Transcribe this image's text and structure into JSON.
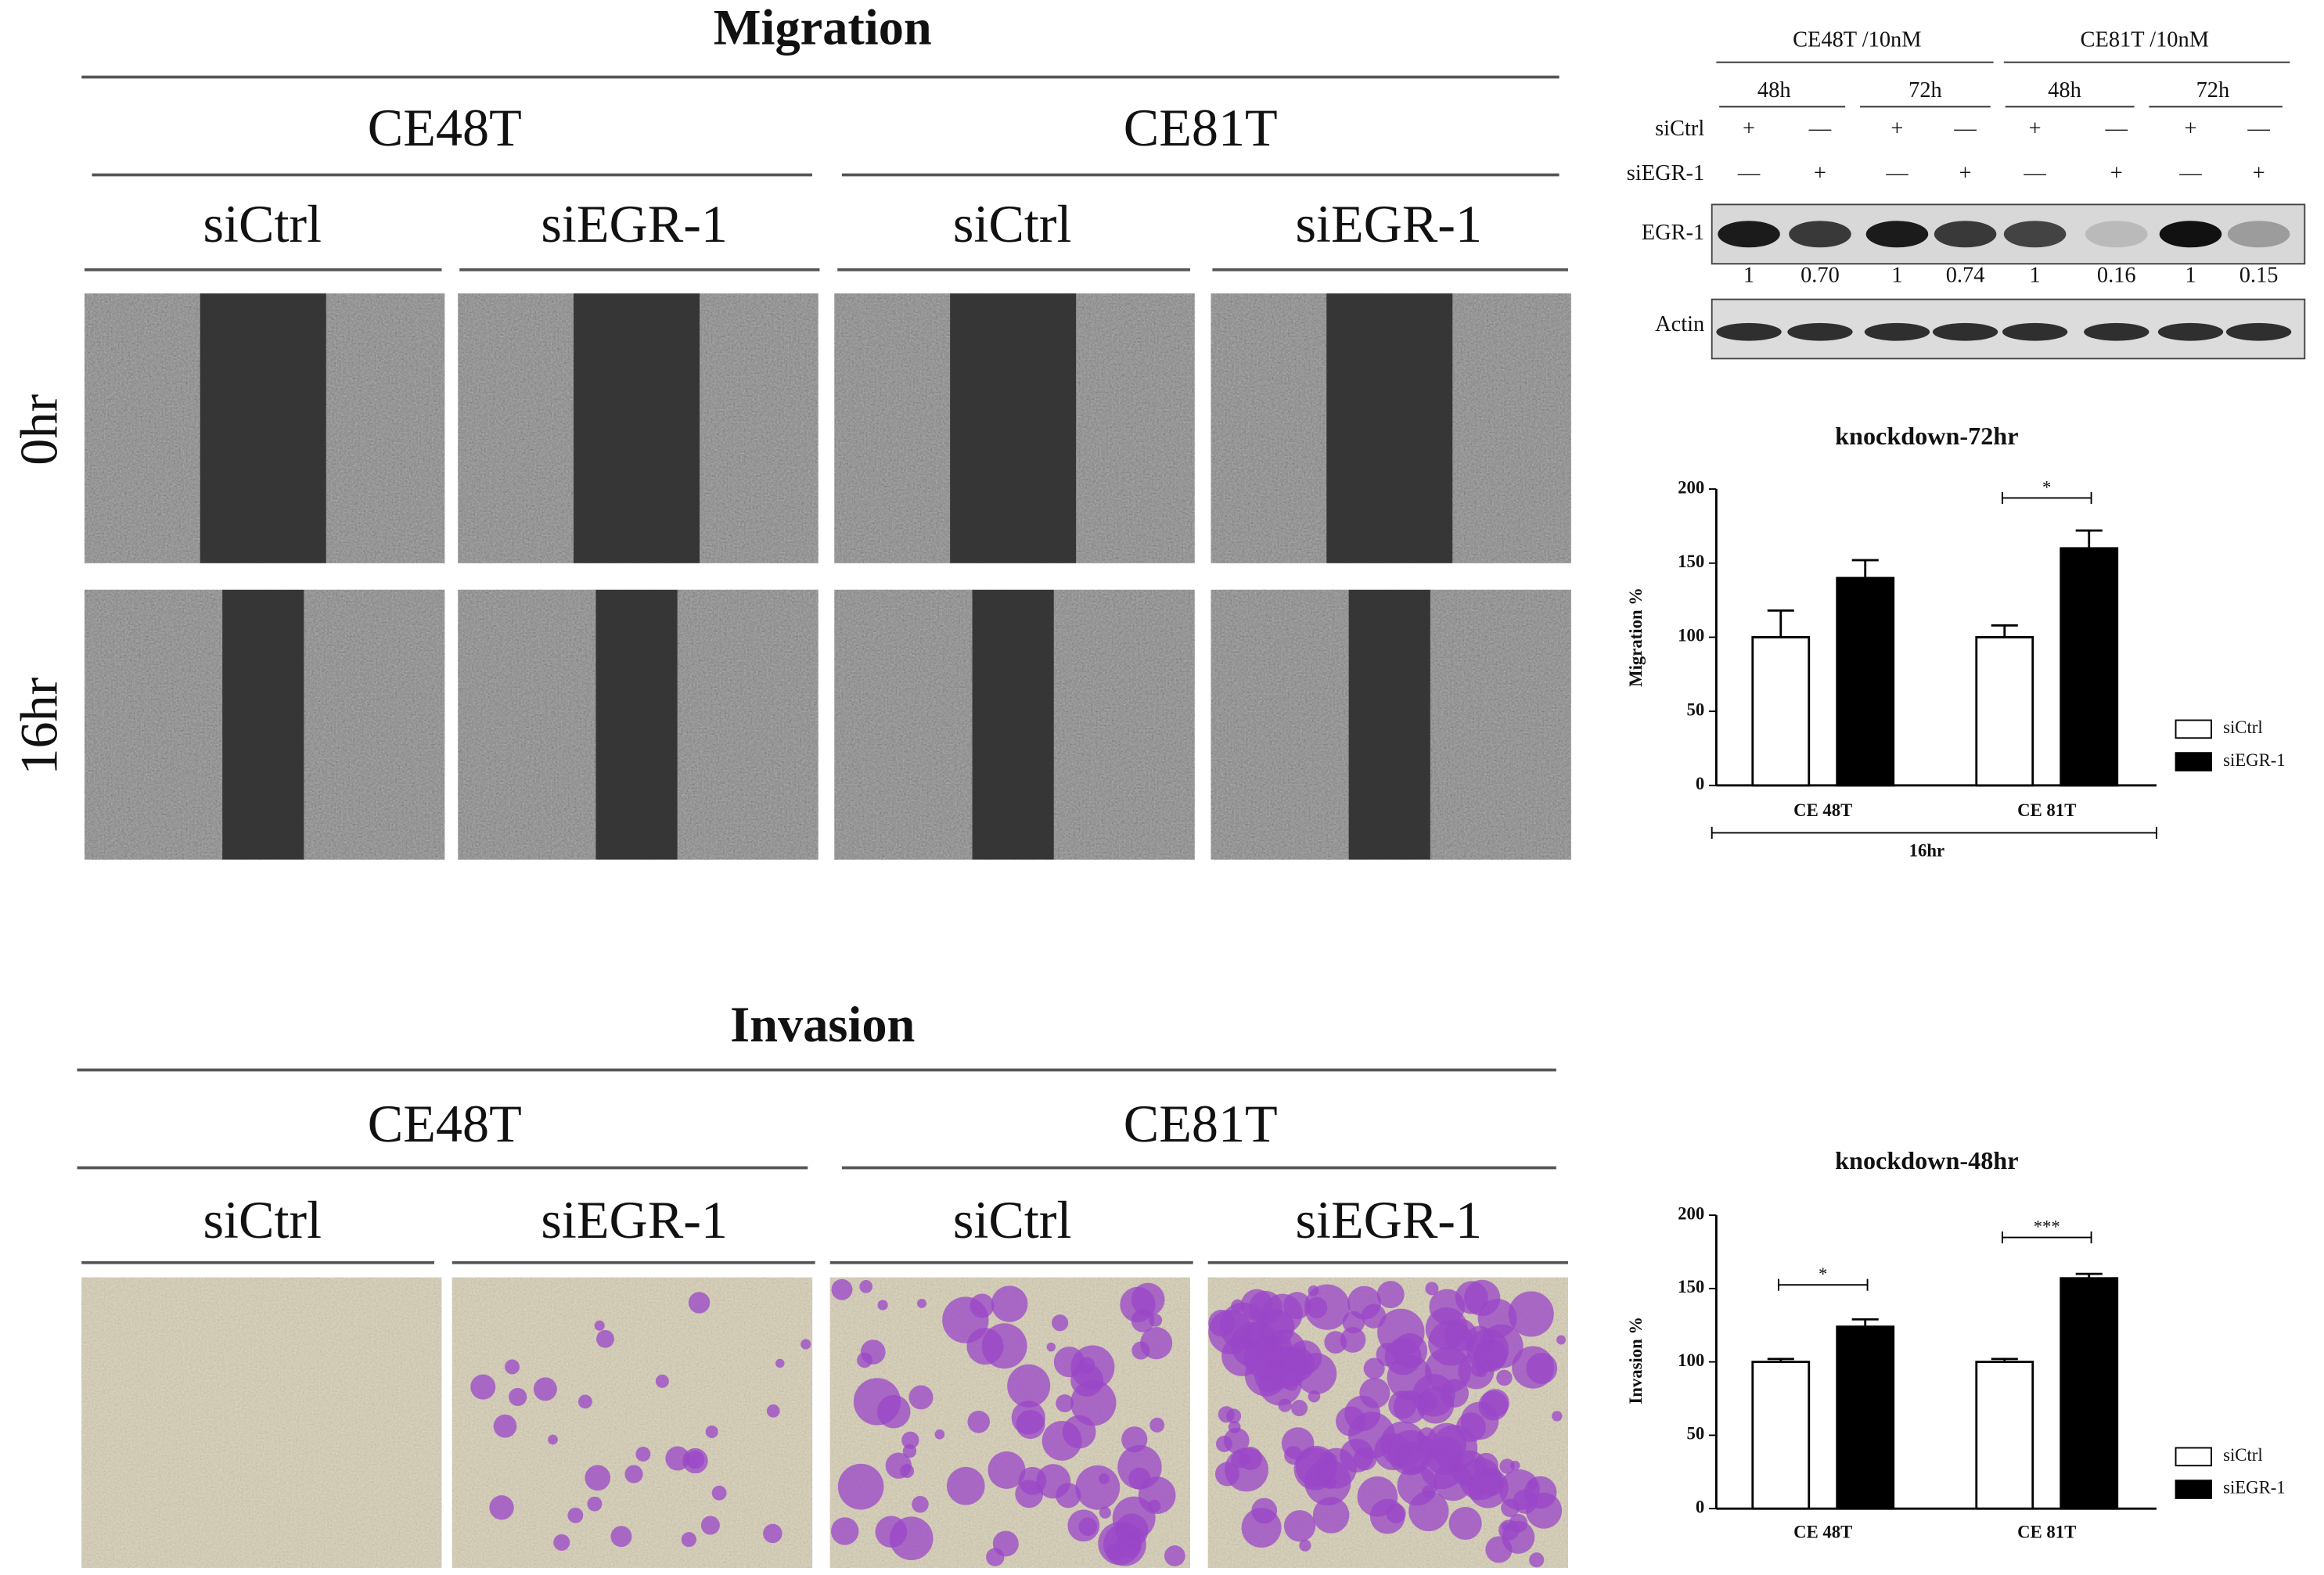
{
  "migration": {
    "title": "Migration",
    "cell_lines": [
      {
        "name": "CE48T",
        "conditions": [
          "siCtrl",
          "siEGR-1"
        ]
      },
      {
        "name": "CE81T",
        "conditions": [
          "siCtrl",
          "siEGR-1"
        ]
      }
    ],
    "time_points": [
      "0hr",
      "16hr"
    ]
  },
  "invasion": {
    "title": "Invasion",
    "cell_lines": [
      {
        "name": "CE48T",
        "conditions": [
          "siCtrl",
          "siEGR-1"
        ]
      },
      {
        "name": "CE81T",
        "conditions": [
          "siCtrl",
          "siEGR-1"
        ]
      }
    ]
  },
  "western_blot": {
    "groups": [
      {
        "label": "CE48T /10nM",
        "times": [
          "48h",
          "72h"
        ]
      },
      {
        "label": "CE81T /10nM",
        "times": [
          "48h",
          "72h"
        ]
      }
    ],
    "treatments": [
      {
        "label": "siCtrl",
        "signs": [
          "+",
          "—",
          "+",
          "—",
          "+",
          "—",
          "+",
          "—"
        ]
      },
      {
        "label": "siEGR-1",
        "signs": [
          "—",
          "+",
          "—",
          "+",
          "—",
          "+",
          "—",
          "+"
        ]
      }
    ],
    "bands": [
      {
        "label": "EGR-1",
        "quantification": [
          "1",
          "0.70",
          "1",
          "0.74",
          "1",
          "0.16",
          "1",
          "0.15"
        ]
      },
      {
        "label": "Actin"
      }
    ]
  },
  "chart_data": [
    {
      "type": "bar",
      "title": "knockdown-72hr",
      "y_label": "Migration %",
      "x_label": "16hr",
      "categories": [
        "CE 48T",
        "CE 81T"
      ],
      "series": [
        {
          "name": "siCtrl",
          "color": "#ffffff",
          "values": [
            100,
            100
          ],
          "errors": [
            18,
            8
          ]
        },
        {
          "name": "siEGR-1",
          "color": "#000000",
          "values": [
            140,
            160
          ],
          "errors": [
            12,
            12
          ]
        }
      ],
      "ylim": [
        0,
        200
      ],
      "yticks": [
        0,
        50,
        100,
        150,
        200
      ],
      "significance": [
        null,
        "*"
      ],
      "legend": "right"
    },
    {
      "type": "bar",
      "title": "knockdown-48hr",
      "y_label": "Invasion %",
      "categories": [
        "CE 48T",
        "CE 81T"
      ],
      "series": [
        {
          "name": "siCtrl",
          "color": "#ffffff",
          "values": [
            100,
            100
          ],
          "errors": [
            2,
            2
          ]
        },
        {
          "name": "siEGR-1",
          "color": "#000000",
          "values": [
            124,
            157
          ],
          "errors": [
            5,
            3
          ]
        }
      ],
      "ylim": [
        0,
        200
      ],
      "yticks": [
        0,
        50,
        100,
        150,
        200
      ],
      "significance": [
        "*",
        "***"
      ],
      "legend": "right"
    }
  ]
}
